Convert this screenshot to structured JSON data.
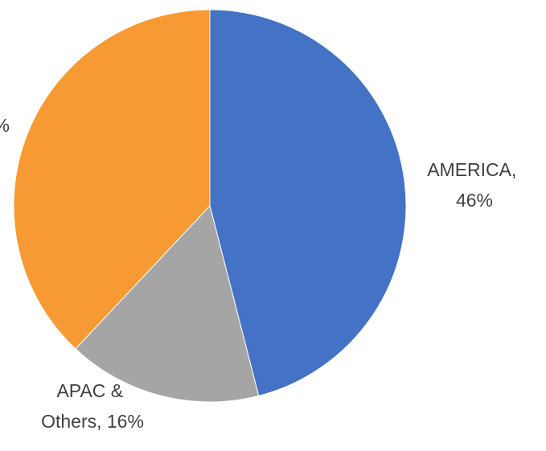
{
  "chart_data": {
    "type": "pie",
    "title": "",
    "start_angle_deg": 0,
    "direction": "clockwise",
    "slices": [
      {
        "name": "AMERICA",
        "value": 46,
        "label_lines": [
          "AMERICA,",
          "46%"
        ],
        "color": "#4472C4"
      },
      {
        "name": "APAC & Others",
        "value": 16,
        "label_lines": [
          "APAC &",
          "Others, 16%"
        ],
        "color": "#A5A5A5"
      },
      {
        "name": "",
        "value": 38,
        "label_lines": [
          "%"
        ],
        "color": "#F79A34"
      }
    ]
  }
}
